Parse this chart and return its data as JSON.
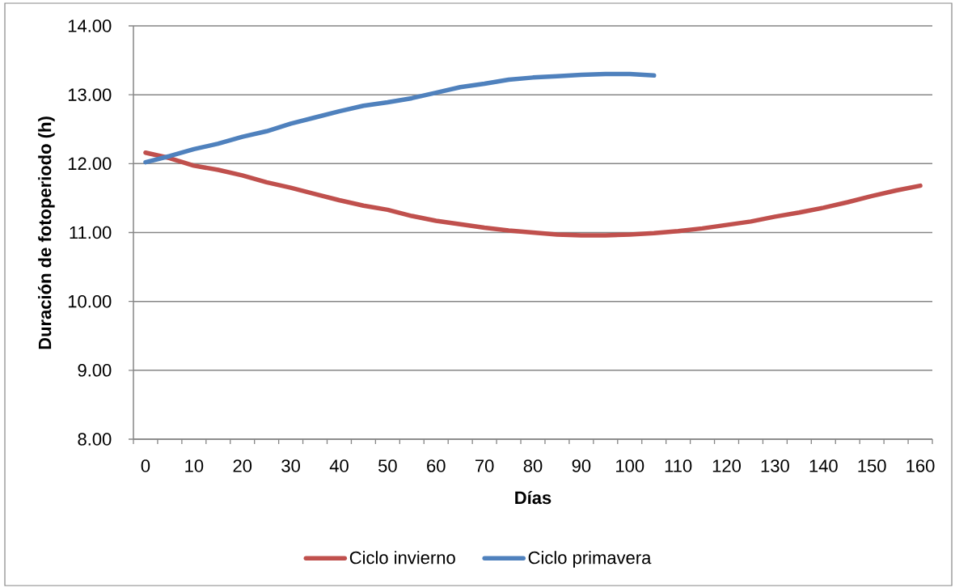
{
  "chart_data": {
    "type": "line",
    "xlabel": "Días",
    "ylabel": "Duración de fotoperiodo (h)",
    "categories": [
      "0",
      null,
      "10",
      null,
      "20",
      null,
      "30",
      null,
      "40",
      null,
      "50",
      null,
      "60",
      null,
      "70",
      null,
      "80",
      null,
      "90",
      null,
      "100",
      null,
      "110",
      null,
      "120",
      null,
      "130",
      null,
      "140",
      null,
      "150",
      null,
      "160"
    ],
    "series": [
      {
        "name": "Ciclo invierno",
        "color": "#c0504d",
        "values": [
          12.16,
          12.08,
          11.97,
          11.91,
          11.83,
          11.73,
          11.65,
          11.56,
          11.47,
          11.39,
          11.33,
          11.24,
          11.17,
          11.12,
          11.07,
          11.03,
          11.0,
          10.97,
          10.96,
          10.96,
          10.97,
          10.99,
          11.02,
          11.06,
          11.11,
          11.16,
          11.23,
          11.29,
          11.36,
          11.44,
          11.53,
          11.61,
          11.68
        ]
      },
      {
        "name": "Ciclo primavera",
        "color": "#4f81bd",
        "values": [
          12.02,
          12.11,
          12.21,
          12.29,
          12.39,
          12.47,
          12.58,
          12.67,
          12.76,
          12.84,
          12.89,
          12.95,
          13.03,
          13.11,
          13.16,
          13.22,
          13.25,
          13.27,
          13.29,
          13.3,
          13.3,
          13.28,
          null,
          null,
          null,
          null,
          null,
          null,
          null,
          null,
          null,
          null,
          null
        ]
      }
    ],
    "ylim": [
      8,
      14
    ],
    "yticks": [
      {
        "value": 8,
        "label": "8.00"
      },
      {
        "value": 9,
        "label": "9.00"
      },
      {
        "value": 10,
        "label": "10.00"
      },
      {
        "value": 11,
        "label": "11.00"
      },
      {
        "value": 12,
        "label": "12.00"
      },
      {
        "value": 13,
        "label": "13.00"
      },
      {
        "value": 14,
        "label": "14.00"
      }
    ],
    "grid": "y",
    "legend": "bottom"
  }
}
